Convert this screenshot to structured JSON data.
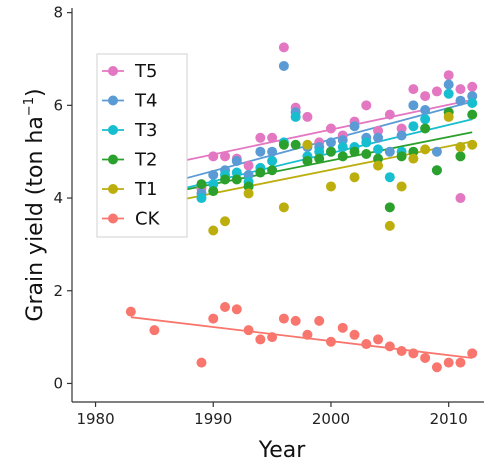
{
  "chart_data": {
    "type": "scatter",
    "xlabel": "Year",
    "ylabel": "Grain yield (ton ha",
    "ylabel_unit_sup": "−1",
    "ylabel_close": ")",
    "xlim": [
      1978,
      2013
    ],
    "ylim": [
      -0.4,
      8.1
    ],
    "xticks": [
      1980,
      1990,
      2000,
      2010
    ],
    "yticks": [
      0,
      2,
      4,
      6,
      8
    ],
    "grid": false,
    "legend": {
      "position": "top-left",
      "order": [
        "T5",
        "T4",
        "T3",
        "T2",
        "T1",
        "CK"
      ]
    },
    "series": [
      {
        "name": "T5",
        "color": "#e377c2",
        "points": [
          [
            1989,
            4.2
          ],
          [
            1990,
            4.9
          ],
          [
            1991,
            4.9
          ],
          [
            1992,
            4.85
          ],
          [
            1993,
            4.7
          ],
          [
            1994,
            5.3
          ],
          [
            1995,
            5.3
          ],
          [
            1996,
            7.25
          ],
          [
            1997,
            5.95
          ],
          [
            1998,
            5.75
          ],
          [
            1999,
            5.2
          ],
          [
            2000,
            5.5
          ],
          [
            2001,
            5.35
          ],
          [
            2002,
            5.65
          ],
          [
            2003,
            6.0
          ],
          [
            2004,
            5.45
          ],
          [
            2005,
            5.8
          ],
          [
            2006,
            5.5
          ],
          [
            2007,
            6.35
          ],
          [
            2008,
            6.2
          ],
          [
            2009,
            6.3
          ],
          [
            2010,
            6.65
          ],
          [
            2011,
            6.35
          ],
          [
            2011,
            4.0
          ],
          [
            2012,
            6.4
          ]
        ],
        "fit": [
          [
            1987,
            4.78
          ],
          [
            2012,
            6.12
          ]
        ]
      },
      {
        "name": "T4",
        "color": "#5b9bd5",
        "points": [
          [
            1989,
            4.1
          ],
          [
            1990,
            4.5
          ],
          [
            1991,
            4.6
          ],
          [
            1992,
            4.8
          ],
          [
            1993,
            4.5
          ],
          [
            1994,
            5.0
          ],
          [
            1995,
            5.0
          ],
          [
            1996,
            6.85
          ],
          [
            1997,
            5.85
          ],
          [
            1998,
            5.1
          ],
          [
            1999,
            5.1
          ],
          [
            2000,
            5.2
          ],
          [
            2001,
            5.25
          ],
          [
            2002,
            5.55
          ],
          [
            2003,
            5.3
          ],
          [
            2004,
            5.3
          ],
          [
            2005,
            5.0
          ],
          [
            2006,
            5.35
          ],
          [
            2007,
            6.0
          ],
          [
            2008,
            5.9
          ],
          [
            2009,
            5.0
          ],
          [
            2010,
            6.45
          ],
          [
            2011,
            6.1
          ],
          [
            2012,
            6.2
          ]
        ],
        "fit": [
          [
            1987,
            4.38
          ],
          [
            2012,
            6.08
          ]
        ]
      },
      {
        "name": "T3",
        "color": "#17becf",
        "points": [
          [
            1989,
            4.0
          ],
          [
            1990,
            4.3
          ],
          [
            1991,
            4.5
          ],
          [
            1992,
            4.55
          ],
          [
            1993,
            4.35
          ],
          [
            1994,
            4.65
          ],
          [
            1995,
            4.8
          ],
          [
            1996,
            5.2
          ],
          [
            1997,
            5.75
          ],
          [
            1998,
            4.9
          ],
          [
            1999,
            5.0
          ],
          [
            2000,
            5.0
          ],
          [
            2001,
            5.1
          ],
          [
            2002,
            5.1
          ],
          [
            2003,
            5.2
          ],
          [
            2004,
            5.05
          ],
          [
            2005,
            4.45
          ],
          [
            2006,
            5.0
          ],
          [
            2007,
            5.55
          ],
          [
            2008,
            5.7
          ],
          [
            2009,
            4.6
          ],
          [
            2010,
            6.25
          ],
          [
            2011,
            5.1
          ],
          [
            2012,
            6.05
          ]
        ],
        "fit": [
          [
            1987,
            4.18
          ],
          [
            2012,
            5.7
          ]
        ]
      },
      {
        "name": "T2",
        "color": "#2ca02c",
        "points": [
          [
            1989,
            4.3
          ],
          [
            1990,
            4.15
          ],
          [
            1991,
            4.4
          ],
          [
            1992,
            4.4
          ],
          [
            1993,
            4.25
          ],
          [
            1994,
            4.55
          ],
          [
            1995,
            4.6
          ],
          [
            1996,
            5.15
          ],
          [
            1997,
            5.15
          ],
          [
            1998,
            4.8
          ],
          [
            1999,
            4.85
          ],
          [
            2000,
            5.0
          ],
          [
            2001,
            4.9
          ],
          [
            2002,
            5.0
          ],
          [
            2003,
            4.95
          ],
          [
            2004,
            4.85
          ],
          [
            2005,
            3.8
          ],
          [
            2006,
            4.9
          ],
          [
            2007,
            5.0
          ],
          [
            2008,
            5.5
          ],
          [
            2009,
            4.6
          ],
          [
            2010,
            5.85
          ],
          [
            2011,
            4.9
          ],
          [
            2012,
            5.8
          ]
        ],
        "fit": [
          [
            1987,
            4.15
          ],
          [
            2012,
            5.42
          ]
        ]
      },
      {
        "name": "T1",
        "color": "#bcae0c",
        "points": [
          [
            1990,
            3.3
          ],
          [
            1991,
            3.5
          ],
          [
            1993,
            4.1
          ],
          [
            1996,
            3.8
          ],
          [
            1998,
            5.15
          ],
          [
            2000,
            4.25
          ],
          [
            2002,
            4.45
          ],
          [
            2004,
            4.7
          ],
          [
            2005,
            3.4
          ],
          [
            2006,
            4.25
          ],
          [
            2007,
            4.85
          ],
          [
            2008,
            5.05
          ],
          [
            2010,
            5.75
          ],
          [
            2011,
            5.1
          ],
          [
            2012,
            5.15
          ]
        ],
        "fit": [
          [
            1987,
            3.95
          ],
          [
            2012,
            5.22
          ]
        ]
      },
      {
        "name": "CK",
        "color": "#f8766d",
        "points": [
          [
            1983,
            1.55
          ],
          [
            1985,
            1.15
          ],
          [
            1989,
            0.45
          ],
          [
            1990,
            1.4
          ],
          [
            1991,
            1.65
          ],
          [
            1992,
            1.6
          ],
          [
            1993,
            1.15
          ],
          [
            1994,
            0.95
          ],
          [
            1995,
            1.0
          ],
          [
            1996,
            1.4
          ],
          [
            1997,
            1.35
          ],
          [
            1998,
            1.05
          ],
          [
            1999,
            1.35
          ],
          [
            2000,
            0.9
          ],
          [
            2001,
            1.2
          ],
          [
            2002,
            1.05
          ],
          [
            2003,
            0.85
          ],
          [
            2004,
            0.95
          ],
          [
            2005,
            0.8
          ],
          [
            2006,
            0.7
          ],
          [
            2007,
            0.65
          ],
          [
            2008,
            0.55
          ],
          [
            2009,
            0.35
          ],
          [
            2010,
            0.45
          ],
          [
            2011,
            0.45
          ],
          [
            2012,
            0.65
          ]
        ],
        "fit": [
          [
            1983,
            1.43
          ],
          [
            2012,
            0.55
          ]
        ]
      }
    ]
  }
}
